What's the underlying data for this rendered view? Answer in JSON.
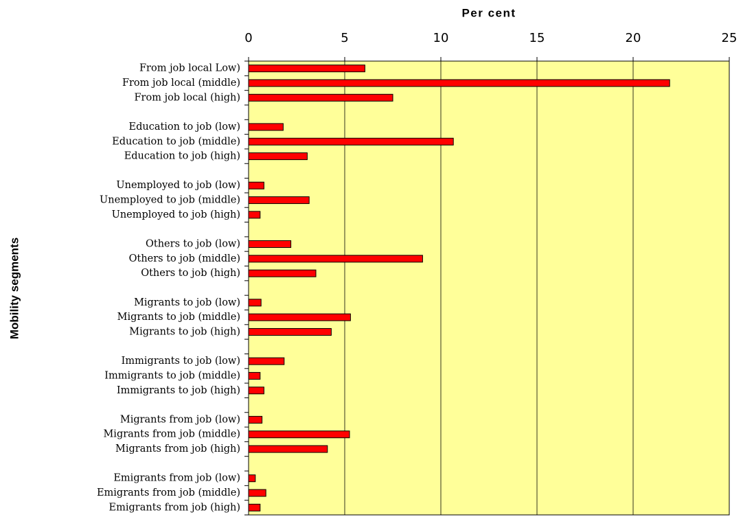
{
  "chart_data": {
    "type": "bar",
    "orientation": "horizontal",
    "x_label": "Per cent",
    "y_label": "Mobility segments",
    "categories": [
      "From job local Low)",
      "From job local (middle)",
      "From job local (high)",
      null,
      "Education to job (low)",
      "Education to job (middle)",
      "Education to job (high)",
      null,
      "Unemployed to job (low)",
      "Unemployed to job (middle)",
      "Unemployed to job (high)",
      null,
      "Others to job (low)",
      "Others to job (middle)",
      "Others to job (high)",
      null,
      "Migrants to job (low)",
      "Migrants to job (middle)",
      "Migrants to job (high)",
      null,
      "Immigrants to job (low)",
      "Immigrants to job (middle)",
      "Immigrants to job (high)",
      null,
      "Migrants from job (low)",
      "Migrants from job (middle)",
      "Migrants from job (high)",
      null,
      "Emigrants from job (low)",
      "Emigrants from job (middle)",
      "Emigrants from job (high)"
    ],
    "values": [
      6.05,
      21.9,
      7.5,
      null,
      1.8,
      10.65,
      3.05,
      null,
      0.8,
      3.15,
      0.6,
      null,
      2.2,
      9.05,
      3.5,
      null,
      0.65,
      5.3,
      4.3,
      null,
      1.85,
      0.6,
      0.8,
      null,
      0.7,
      5.25,
      4.1,
      null,
      0.35,
      0.9,
      0.6
    ],
    "color": "#ff0000",
    "plot_background": "#ffff99",
    "xlim": [
      0,
      25
    ],
    "xticks": [
      0,
      5,
      10,
      15,
      20,
      25
    ],
    "grid": true
  }
}
